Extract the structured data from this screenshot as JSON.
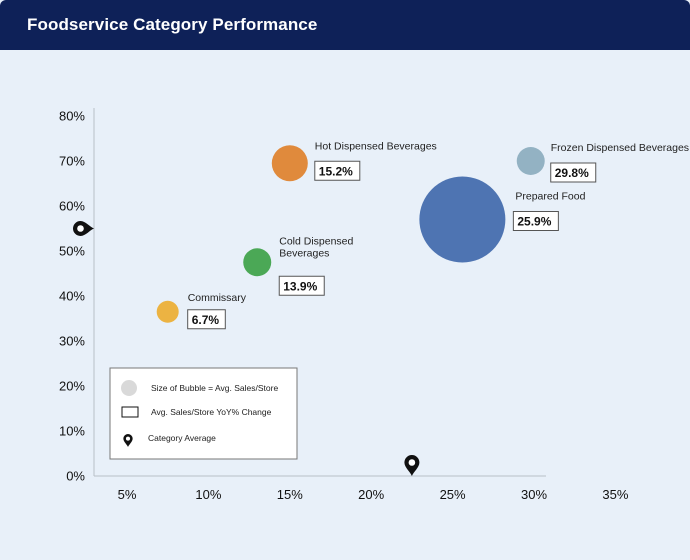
{
  "header": {
    "title": "Foodservice Category Performance"
  },
  "chart_data": {
    "type": "scatter",
    "title": "Foodservice Category Performance",
    "xlim": [
      2,
      35
    ],
    "ylim": [
      0,
      80
    ],
    "x_ticks": [
      5,
      10,
      15,
      20,
      25,
      30,
      35
    ],
    "y_ticks": [
      0,
      10,
      20,
      30,
      40,
      50,
      60,
      70,
      80
    ],
    "tick_suffix": "%",
    "grid": false,
    "points": [
      {
        "name": "Hot Dispensed Beverages",
        "lines": [
          "Hot Dispensed Beverages"
        ],
        "x": 15.0,
        "y": 69.5,
        "size": 18,
        "change": "15.2%",
        "color": "#e08a3c"
      },
      {
        "name": "Frozen Dispensed Beverages",
        "lines": [
          "Frozen Dispensed Beverages"
        ],
        "x": 29.8,
        "y": 70.0,
        "size": 14,
        "change": "29.8%",
        "color": "#93b2c3"
      },
      {
        "name": "Prepared Food",
        "lines": [
          "Prepared Food"
        ],
        "x": 25.6,
        "y": 57.0,
        "size": 43,
        "change": "25.9%",
        "color": "#4e74b2"
      },
      {
        "name": "Cold Dispensed Beverages",
        "lines": [
          "Cold Dispensed",
          "Beverages"
        ],
        "x": 13.0,
        "y": 47.5,
        "size": 14,
        "change": "13.9%",
        "color": "#4ba856"
      },
      {
        "name": "Commissary",
        "lines": [
          "Commissary"
        ],
        "x": 7.5,
        "y": 36.5,
        "size": 11,
        "change": "6.7%",
        "color": "#ecb342"
      }
    ],
    "category_average": {
      "x": 22.5,
      "y": 55
    },
    "legend": {
      "position": "bottom-left",
      "items": [
        {
          "symbol": "circle",
          "label": "Size of Bubble = Avg. Sales/Store"
        },
        {
          "symbol": "box",
          "label": "Avg. Sales/Store YoY% Change"
        },
        {
          "symbol": "pin",
          "label": "Category Average"
        }
      ]
    }
  }
}
